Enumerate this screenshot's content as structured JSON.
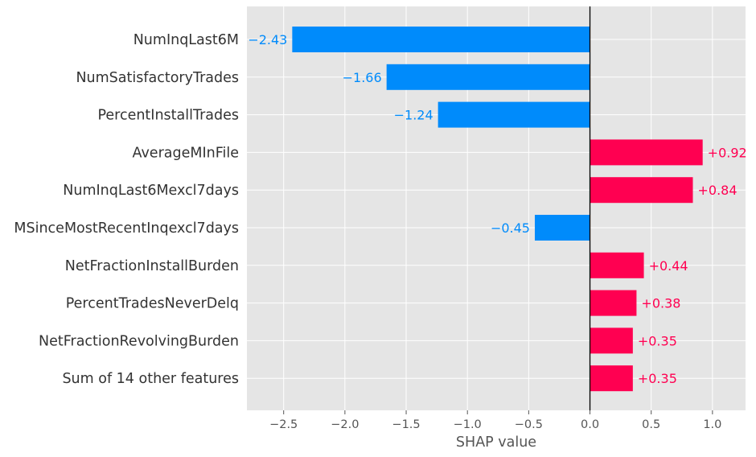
{
  "chart_data": {
    "type": "bar",
    "orientation": "horizontal",
    "xlabel": "SHAP value",
    "xlim": [
      -2.8,
      1.27
    ],
    "xticks": [
      -2.5,
      -2.0,
      -1.5,
      -1.0,
      -0.5,
      0.0,
      0.5,
      1.0
    ],
    "xtick_labels": [
      "−2.5",
      "−2.0",
      "−1.5",
      "−1.0",
      "−0.5",
      "0.0",
      "0.5",
      "1.0"
    ],
    "grid": true,
    "categories": [
      "NumInqLast6M",
      "NumSatisfactoryTrades",
      "PercentInstallTrades",
      "AverageMInFile",
      "NumInqLast6Mexcl7days",
      "MSinceMostRecentInqexcl7days",
      "NetFractionInstallBurden",
      "PercentTradesNeverDelq",
      "NetFractionRevolvingBurden",
      "Sum of 14 other features"
    ],
    "values": [
      -2.43,
      -1.66,
      -1.24,
      0.92,
      0.84,
      -0.45,
      0.44,
      0.38,
      0.35,
      0.35
    ],
    "value_labels": [
      "−2.43",
      "−1.66",
      "−1.24",
      "+0.92",
      "+0.84",
      "−0.45",
      "+0.44",
      "+0.38",
      "+0.35",
      "+0.35"
    ],
    "colors": {
      "negative": "#008bfb",
      "positive": "#ff0051",
      "background": "#e5e5e5",
      "grid": "#ffffff",
      "zero_line": "#000000",
      "label_text": "#333333"
    }
  }
}
